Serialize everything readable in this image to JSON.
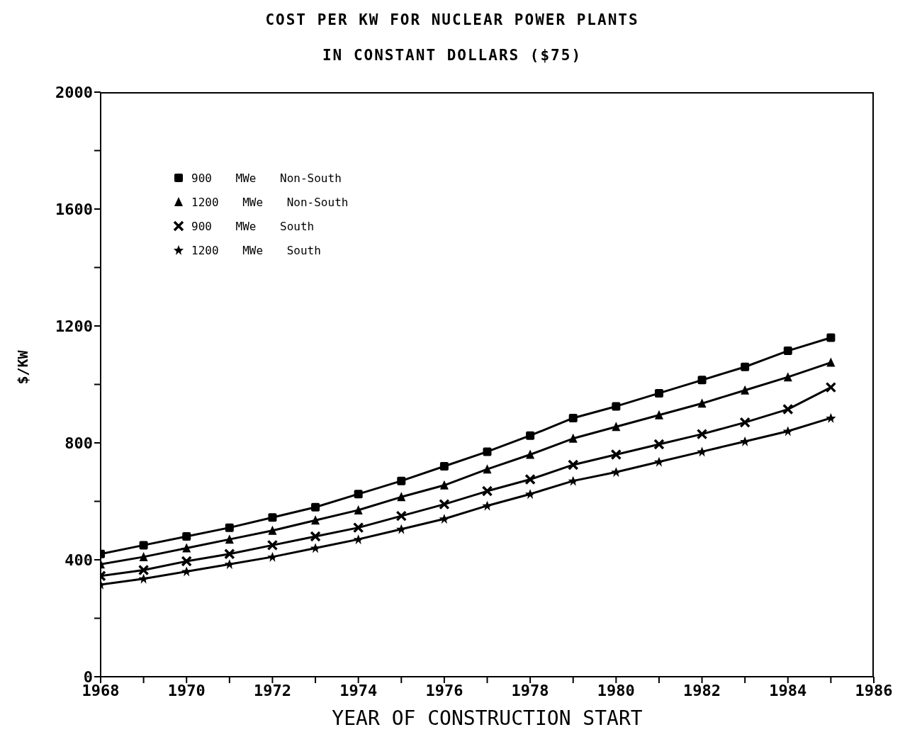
{
  "chart_data": {
    "type": "line",
    "title": "COST PER KW FOR NUCLEAR POWER PLANTS",
    "subtitle": "IN CONSTANT DOLLARS ($75)",
    "xlabel": "YEAR OF CONSTRUCTION START",
    "ylabel": "$/KW",
    "x": [
      1968,
      1969,
      1970,
      1971,
      1972,
      1973,
      1974,
      1975,
      1976,
      1977,
      1978,
      1979,
      1980,
      1981,
      1982,
      1983,
      1984,
      1985
    ],
    "series": [
      {
        "name": "900 MWe Non-South",
        "color": "#000000",
        "marker": "square",
        "values": [
          420,
          450,
          480,
          510,
          545,
          580,
          625,
          670,
          720,
          770,
          825,
          885,
          925,
          970,
          1015,
          1060,
          1115,
          1160
        ]
      },
      {
        "name": "1200 MWe Non-South",
        "color": "#000000",
        "marker": "triangle",
        "values": [
          385,
          410,
          440,
          470,
          500,
          535,
          570,
          615,
          655,
          710,
          760,
          815,
          855,
          895,
          935,
          980,
          1025,
          1075
        ]
      },
      {
        "name": "900 MWe South",
        "color": "#000000",
        "marker": "cross",
        "values": [
          345,
          365,
          395,
          420,
          450,
          480,
          510,
          550,
          590,
          635,
          675,
          725,
          760,
          795,
          830,
          870,
          915,
          990
        ]
      },
      {
        "name": "1200 MWe South",
        "color": "#000000",
        "marker": "star",
        "values": [
          315,
          335,
          360,
          385,
          410,
          440,
          470,
          505,
          540,
          585,
          625,
          670,
          700,
          735,
          770,
          805,
          840,
          885
        ]
      }
    ],
    "xlim": [
      1968,
      1986
    ],
    "xticks": [
      1968,
      {
        "value": 1969,
        "label": null
      },
      1970,
      {
        "value": 1971,
        "label": null
      },
      1972,
      {
        "value": 1973,
        "label": null
      },
      1974,
      {
        "value": 1975,
        "label": null
      },
      1976,
      {
        "value": 1977,
        "label": null
      },
      1978,
      {
        "value": 1979,
        "label": null
      },
      1980,
      {
        "value": 1981,
        "label": null
      },
      1982,
      {
        "value": 1983,
        "label": null
      },
      1984,
      {
        "value": 1985,
        "label": null
      },
      1986
    ],
    "ylim": [
      0,
      2000
    ],
    "yticks": [
      0,
      {
        "value": 200,
        "label": null
      },
      400,
      {
        "value": 600,
        "label": null
      },
      800,
      {
        "value": 1000,
        "label": null
      },
      1200,
      {
        "value": 1400,
        "label": null
      },
      1600,
      {
        "value": 1800,
        "label": null
      },
      2000
    ],
    "grid": false,
    "legend": "top left",
    "line_style": "solid"
  }
}
